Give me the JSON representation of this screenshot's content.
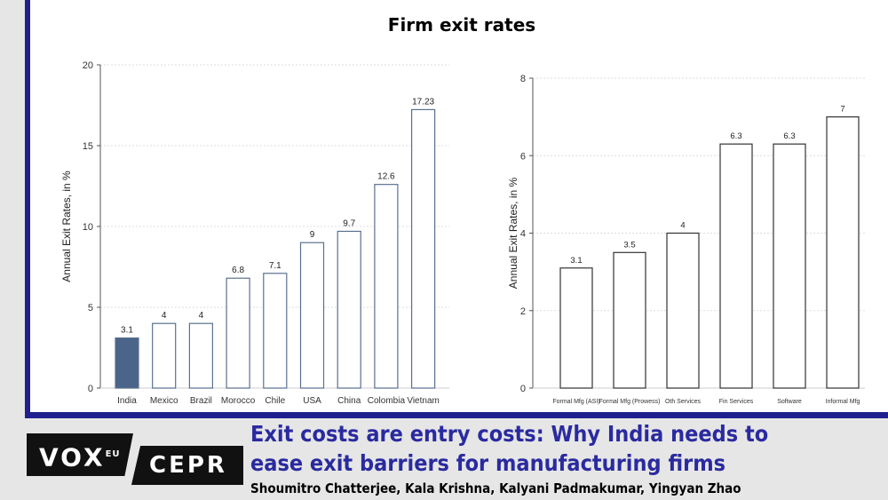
{
  "title": "Firm exit rates",
  "chart_data": [
    {
      "type": "bar",
      "categories": [
        "India",
        "Mexico",
        "Brazil",
        "Morocco",
        "Chile",
        "USA",
        "China",
        "Colombia",
        "Vietnam"
      ],
      "values": [
        3.1,
        4,
        4,
        6.8,
        7.1,
        9,
        9.7,
        12.6,
        17.23
      ],
      "labels": [
        "3.1",
        "4",
        "4",
        "6.8",
        "7.1",
        "9",
        "9.7",
        "12.6",
        "17.23"
      ],
      "ylabel": "Annual Exit Rates, in %",
      "ylim": [
        0,
        20
      ],
      "yticks": [
        0,
        5,
        10,
        15,
        20
      ],
      "grid": true,
      "highlight": "India",
      "colors": {
        "highlight": "#4a6589",
        "default": "#ffffff",
        "edge": "#5a7090"
      }
    },
    {
      "type": "bar",
      "categories": [
        "Formal Mfg (ASI)",
        "Formal Mfg (Prowess)",
        "Oth Services",
        "Fin Services",
        "Software",
        "Informal Mfg"
      ],
      "values": [
        3.1,
        3.5,
        4,
        6.3,
        6.3,
        7
      ],
      "labels": [
        "3.1",
        "3.5",
        "4",
        "6.3",
        "6.3",
        "7"
      ],
      "ylabel": "Annual Exit Rates, in %",
      "ylim": [
        0,
        8
      ],
      "yticks": [
        0,
        2,
        4,
        6,
        8
      ],
      "grid": true,
      "colors": {
        "default": "#ffffff",
        "edge": "#333333"
      }
    }
  ],
  "footer": {
    "logo_vox": "VOX",
    "logo_eu": "EU",
    "logo_cepr": "CEPR",
    "headline": "Exit costs are entry costs: Why India needs to ease exit barriers for manufacturing firms",
    "authors": "Shoumitro Chatterjee, Kala Krishna, Kalyani Padmakumar, Yingyan Zhao"
  }
}
